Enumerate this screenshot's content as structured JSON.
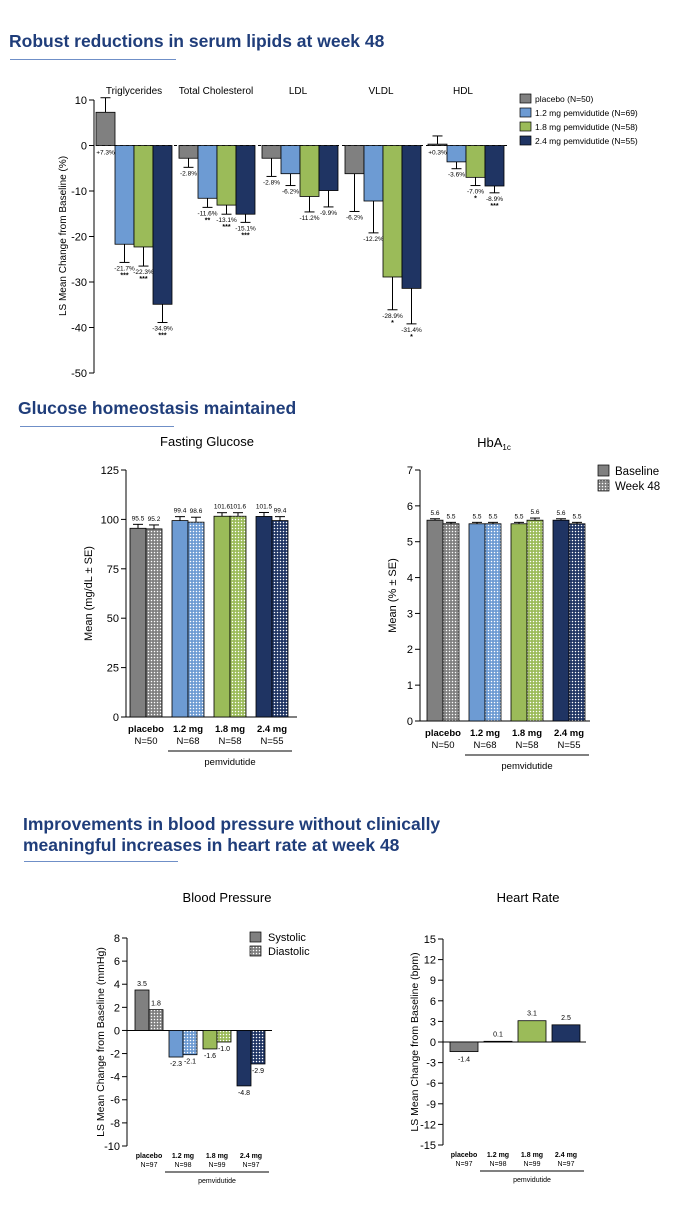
{
  "headings": {
    "lipids": "Robust reductions in serum lipids at week 48",
    "glucose": "Glucose homeostasis maintained",
    "bp_line1": "Improvements in blood pressure without clinically",
    "bp_line2": "meaningful increases in heart rate at week 48"
  },
  "colors": {
    "placebo": "#808080",
    "dose_1_2": "#6d9bd3",
    "dose_1_8": "#9bbb59",
    "dose_2_4": "#1f3463",
    "heading": "#1f3d7a"
  },
  "chart_data": [
    {
      "id": "lipids",
      "type": "bar",
      "ylabel": "LS Mean Change from Baseline (%)",
      "ylim": [
        -50,
        10
      ],
      "yticks": [
        10,
        0,
        -10,
        -20,
        -30,
        -40,
        -50
      ],
      "categories": [
        "Triglycerides",
        "Total Cholesterol",
        "LDL",
        "VLDL",
        "HDL"
      ],
      "legend_position": "top-right",
      "series": [
        {
          "name": "placebo (N=50)",
          "values": [
            7.3,
            -2.8,
            -2.8,
            -6.2,
            0.3
          ],
          "errors": [
            3.2,
            2.0,
            4.0,
            8.3,
            1.8
          ],
          "labels": [
            "+7.3%",
            "-2.8%",
            "-2.8%",
            "-6.2%",
            "+0.3%"
          ],
          "sig": [
            "",
            "",
            "",
            "",
            ""
          ]
        },
        {
          "name": "1.2 mg pemvidutide (N=69)",
          "values": [
            -21.7,
            -11.6,
            -6.2,
            -12.2,
            -3.6
          ],
          "errors": [
            4.0,
            2.0,
            2.6,
            7.0,
            1.5
          ],
          "labels": [
            "-21.7%",
            "-11.6%",
            "-6.2%",
            "-12.2%",
            "-3.6%"
          ],
          "sig": [
            "***",
            "**",
            "",
            "",
            ""
          ]
        },
        {
          "name": "1.8 mg pemvidutide (N=58)",
          "values": [
            -22.3,
            -13.1,
            -11.2,
            -28.9,
            -7.0
          ],
          "errors": [
            4.2,
            2.0,
            3.4,
            7.2,
            1.8
          ],
          "labels": [
            "-22.3%",
            "-13.1%",
            "-11.2%",
            "-28.9%",
            "-7.0%"
          ],
          "sig": [
            "***",
            "***",
            "",
            "*",
            "*"
          ]
        },
        {
          "name": "2.4 mg pemvidutide (N=55)",
          "values": [
            -34.9,
            -15.1,
            -9.9,
            -31.4,
            -8.9
          ],
          "errors": [
            4.0,
            1.8,
            3.6,
            7.8,
            1.5
          ],
          "labels": [
            "-34.9%",
            "-15.1%",
            "-9.9%",
            "-31.4%",
            "-8.9%"
          ],
          "sig": [
            "***",
            "***",
            "",
            "*",
            "***"
          ]
        }
      ]
    },
    {
      "id": "fasting_glucose",
      "type": "bar",
      "title": "Fasting Glucose",
      "ylabel": "Mean (mg/dL ± SE)",
      "ylim": [
        0,
        125
      ],
      "yticks": [
        0,
        25,
        50,
        75,
        100,
        125
      ],
      "groups": [
        {
          "name": "placebo",
          "n": "N=50",
          "baseline": 95.5,
          "week48": 95.2,
          "err_b": 2.0,
          "err_w": 2.0
        },
        {
          "name": "1.2 mg",
          "n": "N=68",
          "baseline": 99.4,
          "week48": 98.6,
          "err_b": 2.0,
          "err_w": 2.5
        },
        {
          "name": "1.8 mg",
          "n": "N=58",
          "baseline": 101.6,
          "week48": 101.6,
          "err_b": 1.8,
          "err_w": 1.8
        },
        {
          "name": "2.4 mg",
          "n": "N=55",
          "baseline": 101.5,
          "week48": 99.4,
          "err_b": 2.0,
          "err_w": 2.0
        }
      ],
      "value_labels": [
        [
          "95.5",
          "95.2"
        ],
        [
          "99.4",
          "98.6"
        ],
        [
          "101.6",
          "101.6"
        ],
        [
          "101.5",
          "99.4"
        ]
      ],
      "group_label": "pemvidutide"
    },
    {
      "id": "hba1c",
      "type": "bar",
      "title_main": "HbA",
      "title_sub": "1c",
      "ylabel": "Mean (% ± SE)",
      "ylim": [
        0,
        7
      ],
      "yticks": [
        0,
        1,
        2,
        3,
        4,
        5,
        6,
        7
      ],
      "legend": [
        "Baseline",
        "Week 48"
      ],
      "legend_position": "top-right",
      "groups": [
        {
          "name": "placebo",
          "n": "N=50",
          "baseline": 5.6,
          "week48": 5.5,
          "err_b": 0.04,
          "err_w": 0.04
        },
        {
          "name": "1.2 mg",
          "n": "N=68",
          "baseline": 5.5,
          "week48": 5.5,
          "err_b": 0.04,
          "err_w": 0.04
        },
        {
          "name": "1.8 mg",
          "n": "N=58",
          "baseline": 5.5,
          "week48": 5.6,
          "err_b": 0.04,
          "err_w": 0.06
        },
        {
          "name": "2.4 mg",
          "n": "N=55",
          "baseline": 5.6,
          "week48": 5.5,
          "err_b": 0.04,
          "err_w": 0.04
        }
      ],
      "value_labels": [
        [
          "5.6",
          "5.5"
        ],
        [
          "5.5",
          "5.5"
        ],
        [
          "5.5",
          "5.6"
        ],
        [
          "5.6",
          "5.5"
        ]
      ],
      "group_label": "pemvidutide"
    },
    {
      "id": "blood_pressure",
      "type": "bar",
      "title": "Blood Pressure",
      "ylabel": "LS Mean Change from Baseline (mmHg)",
      "ylim": [
        -10,
        8
      ],
      "yticks": [
        8,
        6,
        4,
        2,
        0,
        -2,
        -4,
        -6,
        -8,
        -10
      ],
      "legend": [
        "Systolic",
        "Diastolic"
      ],
      "legend_position": "top-right",
      "groups": [
        {
          "name": "placebo",
          "n": "N=97",
          "systolic": 3.5,
          "diastolic": 1.8
        },
        {
          "name": "1.2 mg",
          "n": "N=98",
          "systolic": -2.3,
          "diastolic": -2.1
        },
        {
          "name": "1.8 mg",
          "n": "N=99",
          "systolic": -1.6,
          "diastolic": -1.0
        },
        {
          "name": "2.4 mg",
          "n": "N=97",
          "systolic": -4.8,
          "diastolic": -2.9
        }
      ],
      "value_labels": [
        [
          "3.5",
          "1.8"
        ],
        [
          "-2.3",
          "-2.1"
        ],
        [
          "-1.6",
          "-1.0"
        ],
        [
          "-4.8",
          "-2.9"
        ]
      ],
      "group_label": "pemvidutide"
    },
    {
      "id": "heart_rate",
      "type": "bar",
      "title": "Heart Rate",
      "ylabel": "LS Mean Change from Baseline (bpm)",
      "ylim": [
        -15,
        15
      ],
      "yticks": [
        15,
        12,
        9,
        6,
        3,
        0,
        -3,
        -6,
        -9,
        -12,
        -15
      ],
      "groups": [
        {
          "name": "placebo",
          "n": "N=97",
          "value": -1.4
        },
        {
          "name": "1.2 mg",
          "n": "N=98",
          "value": 0.1
        },
        {
          "name": "1.8 mg",
          "n": "N=99",
          "value": 3.1
        },
        {
          "name": "2.4 mg",
          "n": "N=97",
          "value": 2.5
        }
      ],
      "value_labels": [
        "-1.4",
        "0.1",
        "3.1",
        "2.5"
      ],
      "group_label": "pemvidutide"
    }
  ]
}
